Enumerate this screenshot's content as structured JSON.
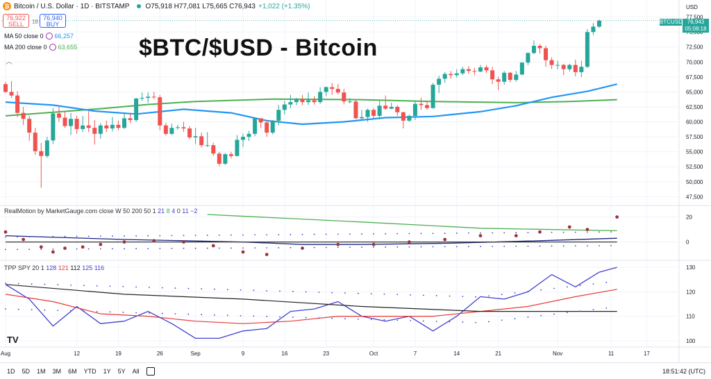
{
  "header": {
    "symbol": "Bitcoin / U.S. Dollar · 1D · BITSTAMP",
    "logo_icon": "bitcoin-logo-icon",
    "ohlc": "O75,918 H77,081 L75,665 C76,943",
    "change": "+1,022 (+1.35%)",
    "sell_price": "76,922",
    "sell_label": "SELL",
    "spread": "18",
    "buy_price": "76,940",
    "buy_label": "BUY",
    "ma50_label": "MA 50 close 0",
    "ma50_value": "66,257",
    "ma200_label": "MA 200 close 0",
    "ma200_value": "63,655",
    "overlay_title": "$BTC/$USD - Bitcoin",
    "price_axis_unit": "USD",
    "last_symbol": "BTCUSD",
    "last_price": "76,943",
    "last_countdown": "05:08:18"
  },
  "indicators": {
    "realmotion_label": "RealMotion by MarketGauge.com close W 50 200 50 1",
    "realmotion_params": [
      "21",
      "8",
      "4",
      "0",
      "11",
      "−2"
    ],
    "tpp_label": "TPP SPY 20 1",
    "tpp_values": [
      "128",
      "121",
      "112",
      "125",
      "116"
    ]
  },
  "footer": {
    "ranges": [
      "1D",
      "5D",
      "1M",
      "3M",
      "6M",
      "YTD",
      "1Y",
      "5Y",
      "All"
    ],
    "time": "18:51:42 (UTC)",
    "watermark": "TV"
  },
  "colors": {
    "up": "#26a69a",
    "down": "#ef5350",
    "ma50": "#2196f3",
    "ma200": "#4caf50",
    "rm_dots": "#a0333a",
    "tpp_blue": "#3f3fcf",
    "tpp_red": "#e53935",
    "tpp_black": "#222222"
  },
  "chart_data": [
    {
      "type": "candlestick",
      "title": "",
      "yaxis_ticks": [
        47500,
        50000,
        52500,
        55000,
        57500,
        60000,
        62500,
        65000,
        67500,
        70000,
        72500,
        75000,
        77500
      ],
      "ylim": [
        46500,
        77800
      ],
      "x_ticks": [
        "Aug",
        "12",
        "19",
        "26",
        "Sep",
        "9",
        "16",
        "23",
        "Oct",
        "7",
        "14",
        "21",
        "Nov",
        "11",
        "17"
      ],
      "x_tick_days": [
        0,
        12,
        19,
        26,
        32,
        40,
        47,
        54,
        62,
        69,
        76,
        83,
        93,
        102,
        108
      ],
      "candles": [
        [
          66300,
          66700,
          64800,
          65000
        ],
        [
          65000,
          66800,
          64000,
          64400
        ],
        [
          64400,
          65100,
          60800,
          61500
        ],
        [
          61500,
          62500,
          59500,
          60500
        ],
        [
          60500,
          61000,
          56800,
          58200
        ],
        [
          58200,
          59000,
          54500,
          55100
        ],
        [
          55100,
          56500,
          49000,
          54300
        ],
        [
          54300,
          57500,
          54000,
          56900
        ],
        [
          56900,
          62300,
          56300,
          61400
        ],
        [
          61400,
          62500,
          60000,
          60700
        ],
        [
          60700,
          61800,
          59000,
          59300
        ],
        [
          59300,
          61500,
          57800,
          60500
        ],
        [
          60500,
          61000,
          58000,
          58800
        ],
        [
          58800,
          61000,
          58300,
          59400
        ],
        [
          59400,
          61800,
          58300,
          59000
        ],
        [
          59000,
          60300,
          56200,
          58000
        ],
        [
          58000,
          59800,
          57200,
          59400
        ],
        [
          59400,
          60200,
          58300,
          58900
        ],
        [
          58900,
          60800,
          58400,
          59500
        ],
        [
          59500,
          60200,
          58600,
          59000
        ],
        [
          59000,
          61500,
          58800,
          60600
        ],
        [
          60600,
          61500,
          59800,
          60300
        ],
        [
          60300,
          64000,
          60000,
          63900
        ],
        [
          63900,
          64900,
          63500,
          64000
        ],
        [
          64000,
          64900,
          63200,
          64200
        ],
        [
          64200,
          65000,
          63800,
          64100
        ],
        [
          64100,
          64500,
          58600,
          59400
        ],
        [
          59400,
          59800,
          57700,
          58000
        ],
        [
          58000,
          59700,
          57800,
          59000
        ],
        [
          59000,
          59500,
          58700,
          59100
        ],
        [
          59100,
          60000,
          58300,
          58900
        ],
        [
          58900,
          59300,
          57100,
          57400
        ],
        [
          57400,
          59000,
          56300,
          57600
        ],
        [
          57600,
          58200,
          55700,
          56100
        ],
        [
          56100,
          58300,
          55800,
          56100
        ],
        [
          56100,
          56500,
          54300,
          54700
        ],
        [
          54700,
          55000,
          52600,
          53000
        ],
        [
          53000,
          54800,
          52800,
          54600
        ],
        [
          54600,
          55000,
          53900,
          54300
        ],
        [
          54300,
          57800,
          54200,
          57000
        ],
        [
          57000,
          58000,
          55800,
          57500
        ],
        [
          57500,
          58500,
          56800,
          58000
        ],
        [
          58000,
          60600,
          57600,
          60600
        ],
        [
          60600,
          60600,
          59000,
          59900
        ],
        [
          59900,
          60300,
          57500,
          58200
        ],
        [
          58200,
          60300,
          57900,
          60200
        ],
        [
          60200,
          62800,
          59400,
          62000
        ],
        [
          62000,
          63500,
          61200,
          62900
        ],
        [
          62900,
          64500,
          62300,
          63300
        ],
        [
          63300,
          64000,
          62800,
          63700
        ],
        [
          63700,
          64500,
          62800,
          63300
        ],
        [
          63300,
          64900,
          62800,
          63600
        ],
        [
          63600,
          64300,
          62900,
          63300
        ],
        [
          63300,
          65800,
          63000,
          65000
        ],
        [
          65000,
          65900,
          64300,
          65800
        ],
        [
          65800,
          66500,
          64500,
          65500
        ],
        [
          65500,
          66300,
          64600,
          64900
        ],
        [
          64900,
          65500,
          62900,
          63400
        ],
        [
          63400,
          64000,
          63100,
          63400
        ],
        [
          63400,
          63700,
          60500,
          60600
        ],
        [
          60600,
          62000,
          60300,
          60800
        ],
        [
          60800,
          62200,
          60000,
          62000
        ],
        [
          62000,
          62300,
          60500,
          61000
        ],
        [
          61000,
          63500,
          60400,
          62700
        ],
        [
          62700,
          64400,
          62000,
          62200
        ],
        [
          62200,
          63200,
          62100,
          62500
        ],
        [
          62500,
          62800,
          61000,
          61600
        ],
        [
          61600,
          61700,
          58900,
          60200
        ],
        [
          60200,
          61200,
          60000,
          61000
        ],
        [
          61000,
          63400,
          60300,
          63000
        ],
        [
          63000,
          64000,
          62000,
          62800
        ],
        [
          62800,
          63400,
          62000,
          62300
        ],
        [
          62300,
          66500,
          62200,
          66200
        ],
        [
          66200,
          67700,
          64800,
          67200
        ],
        [
          67200,
          68300,
          66500,
          68000
        ],
        [
          68000,
          68500,
          67200,
          67800
        ],
        [
          67800,
          68800,
          67400,
          68100
        ],
        [
          68100,
          69200,
          67800,
          68800
        ],
        [
          68800,
          69300,
          68000,
          68500
        ],
        [
          68500,
          69000,
          67800,
          68400
        ],
        [
          68400,
          69500,
          68300,
          69100
        ],
        [
          69100,
          69500,
          68200,
          68600
        ],
        [
          68600,
          69200,
          66300,
          67100
        ],
        [
          67100,
          67500,
          65300,
          66700
        ],
        [
          66700,
          68500,
          66200,
          68200
        ],
        [
          68200,
          68300,
          66600,
          67000
        ],
        [
          67000,
          68500,
          66700,
          67900
        ],
        [
          67900,
          70000,
          67800,
          69900
        ],
        [
          69900,
          71600,
          69500,
          71500
        ],
        [
          71500,
          73600,
          71300,
          72700
        ],
        [
          72700,
          73000,
          71400,
          72300
        ],
        [
          72300,
          72700,
          69200,
          70300
        ],
        [
          70300,
          70800,
          68800,
          69500
        ],
        [
          69500,
          70200,
          68800,
          69500
        ],
        [
          69500,
          69700,
          67800,
          68800
        ],
        [
          68800,
          69700,
          68400,
          69500
        ],
        [
          69500,
          70400,
          67600,
          68300
        ],
        [
          68300,
          70200,
          67500,
          69200
        ],
        [
          69200,
          75500,
          69000,
          75000
        ],
        [
          75000,
          76500,
          74500,
          75900
        ],
        [
          75900,
          77100,
          75700,
          76900
        ]
      ],
      "ma50": [
        [
          0,
          63300
        ],
        [
          8,
          62800
        ],
        [
          15,
          61800
        ],
        [
          22,
          61300
        ],
        [
          30,
          62100
        ],
        [
          38,
          61500
        ],
        [
          44,
          60200
        ],
        [
          50,
          59600
        ],
        [
          57,
          60000
        ],
        [
          64,
          60700
        ],
        [
          72,
          60900
        ],
        [
          80,
          61700
        ],
        [
          86,
          62700
        ],
        [
          92,
          64100
        ],
        [
          98,
          65100
        ],
        [
          103,
          66300
        ]
      ],
      "ma200": [
        [
          0,
          61000
        ],
        [
          8,
          61600
        ],
        [
          16,
          62200
        ],
        [
          24,
          62900
        ],
        [
          32,
          63400
        ],
        [
          45,
          63800
        ],
        [
          60,
          63700
        ],
        [
          72,
          63400
        ],
        [
          86,
          63200
        ],
        [
          95,
          63400
        ],
        [
          103,
          63700
        ]
      ]
    },
    {
      "type": "line",
      "title": "RealMotion by MarketGauge.com close W 50 200 50 1",
      "yaxis_ticks": [
        0,
        20
      ],
      "ylim": [
        -13,
        27
      ],
      "series": [
        {
          "name": "",
          "color": "#4caf50",
          "points": [
            [
              34,
              22
            ],
            [
              60,
              16
            ],
            [
              80,
              11
            ],
            [
              103,
              9
            ]
          ]
        },
        {
          "name": "",
          "color": "#1a237e",
          "points": [
            [
              0,
              5
            ],
            [
              20,
              2
            ],
            [
              40,
              0
            ],
            [
              50,
              -2
            ],
            [
              60,
              -2
            ],
            [
              75,
              -1
            ],
            [
              90,
              1
            ],
            [
              103,
              3
            ]
          ]
        },
        {
          "name": "",
          "color": "#333333",
          "points": [
            [
              0,
              0
            ],
            [
              40,
              0
            ],
            [
              70,
              0
            ],
            [
              103,
              0
            ]
          ]
        },
        {
          "name": "",
          "color": "#a0333a",
          "style": "dots",
          "points": [
            [
              0,
              8
            ],
            [
              3,
              2
            ],
            [
              6,
              -4
            ],
            [
              8,
              -8
            ],
            [
              10,
              -5
            ],
            [
              13,
              -4
            ],
            [
              16,
              -2
            ],
            [
              20,
              0
            ],
            [
              25,
              1
            ],
            [
              30,
              0
            ],
            [
              35,
              -3
            ],
            [
              40,
              -8
            ],
            [
              44,
              -10
            ],
            [
              50,
              -5
            ],
            [
              56,
              -2
            ],
            [
              62,
              -2
            ],
            [
              68,
              0
            ],
            [
              74,
              2
            ],
            [
              80,
              5
            ],
            [
              86,
              5
            ],
            [
              90,
              8
            ],
            [
              95,
              12
            ],
            [
              98,
              10
            ],
            [
              103,
              20
            ]
          ]
        }
      ],
      "params": [
        21,
        8,
        4,
        0,
        11,
        -2
      ]
    },
    {
      "type": "line",
      "title": "TPP SPY 20 1",
      "yaxis_ticks": [
        100,
        110,
        120,
        130
      ],
      "ylim": [
        98,
        132
      ],
      "series": [
        {
          "name": "",
          "color": "#3f3fcf",
          "points": [
            [
              0,
              123
            ],
            [
              4,
              117
            ],
            [
              8,
              106
            ],
            [
              12,
              114
            ],
            [
              16,
              107
            ],
            [
              20,
              108
            ],
            [
              24,
              112
            ],
            [
              28,
              107
            ],
            [
              32,
              101
            ],
            [
              36,
              101
            ],
            [
              40,
              104
            ],
            [
              44,
              105
            ],
            [
              48,
              112
            ],
            [
              52,
              113
            ],
            [
              56,
              116
            ],
            [
              60,
              110
            ],
            [
              64,
              108
            ],
            [
              68,
              110
            ],
            [
              72,
              104
            ],
            [
              76,
              110
            ],
            [
              80,
              118
            ],
            [
              84,
              117
            ],
            [
              88,
              120
            ],
            [
              92,
              127
            ],
            [
              96,
              122
            ],
            [
              100,
              128
            ],
            [
              103,
              130
            ]
          ]
        },
        {
          "name": "",
          "color": "#e53935",
          "points": [
            [
              0,
              119
            ],
            [
              8,
              116
            ],
            [
              16,
              111
            ],
            [
              24,
              110
            ],
            [
              32,
              108
            ],
            [
              40,
              107
            ],
            [
              48,
              108
            ],
            [
              56,
              110
            ],
            [
              64,
              110
            ],
            [
              72,
              110
            ],
            [
              80,
              112
            ],
            [
              88,
              114
            ],
            [
              96,
              118
            ],
            [
              103,
              121
            ]
          ]
        },
        {
          "name": "",
          "color": "#222222",
          "points": [
            [
              0,
              123
            ],
            [
              20,
              119
            ],
            [
              40,
              117
            ],
            [
              60,
              114
            ],
            [
              80,
              112
            ],
            [
              103,
              112
            ]
          ]
        }
      ]
    }
  ]
}
